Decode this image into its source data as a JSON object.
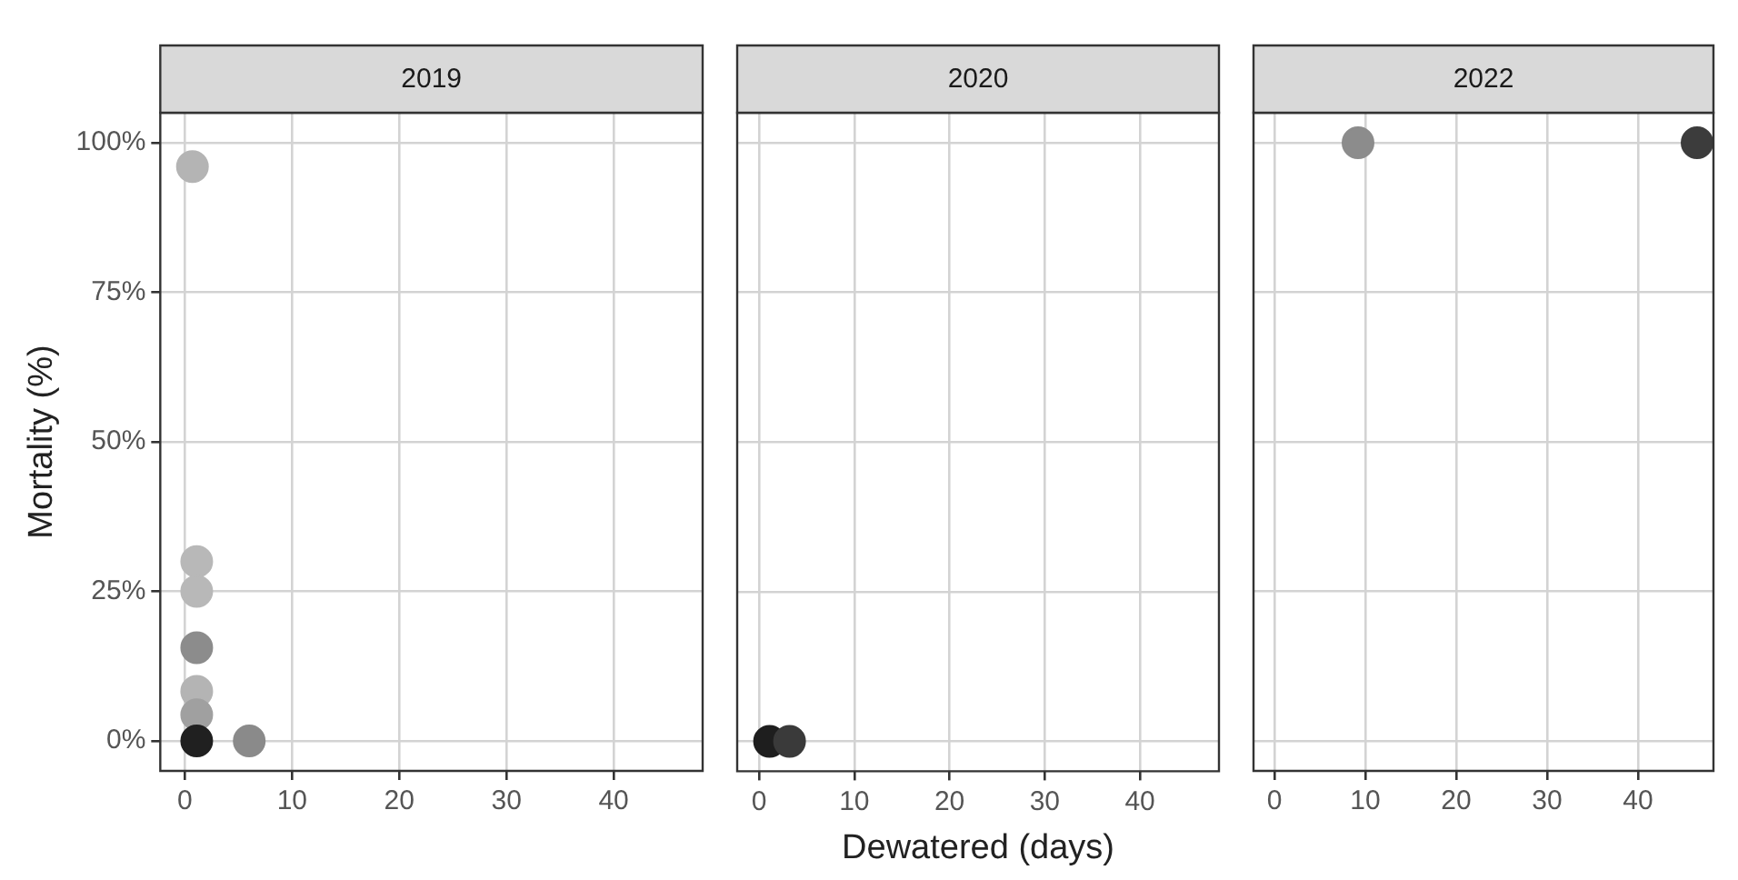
{
  "chart_data": [
    {
      "type": "scatter",
      "title": "2019",
      "ylabel": "Mortality (%)",
      "grid": true,
      "marker": "circle",
      "x": [
        0.7,
        1.1,
        1.1,
        1.1,
        1.1,
        1.1,
        1.1,
        6
      ],
      "values": [
        96,
        30,
        25,
        15.6,
        8.3,
        4.4,
        0,
        0
      ],
      "colors": [
        "#b4b4b4",
        "#b8b8b8",
        "#b8b8b8",
        "#8c8c8c",
        "#b4b4b4",
        "#a0a0a0",
        "#202020",
        "#8a8a8a"
      ],
      "xlim": [
        -2.3,
        48.3
      ],
      "xticks": [
        0,
        10,
        20,
        30,
        40
      ],
      "ylim": [
        -5,
        105
      ],
      "yticks": [
        {
          "value": 0,
          "label": "0%"
        },
        {
          "value": 25,
          "label": "25%"
        },
        {
          "value": 50,
          "label": "50%"
        },
        {
          "value": 75,
          "label": "75%"
        },
        {
          "value": 100,
          "label": "100%"
        }
      ]
    },
    {
      "type": "scatter",
      "title": "2020",
      "xlabel": "Dewatered (days)",
      "grid": true,
      "marker": "circle",
      "tick_labels": "x",
      "x": [
        1.1,
        3.2
      ],
      "values": [
        0,
        0
      ],
      "colors": [
        "#1e1e1e",
        "#3a3a3a"
      ],
      "xlim": [
        -2.3,
        48.3
      ],
      "xticks": [
        0,
        10,
        20,
        30,
        40
      ],
      "ylim": [
        -5,
        105
      ],
      "yticks": [
        0,
        25,
        50,
        75,
        100
      ]
    },
    {
      "type": "scatter",
      "title": "2022",
      "grid": true,
      "marker": "circle",
      "tick_labels": "x",
      "x": [
        9.2,
        46.5
      ],
      "values": [
        100,
        100
      ],
      "colors": [
        "#8c8c8c",
        "#3c3c3c"
      ],
      "xlim": [
        -2.3,
        48.3
      ],
      "xticks": [
        0,
        10,
        20,
        30,
        40
      ],
      "ylim": [
        -5,
        105
      ],
      "yticks": [
        0,
        25,
        50,
        75,
        100
      ]
    }
  ]
}
